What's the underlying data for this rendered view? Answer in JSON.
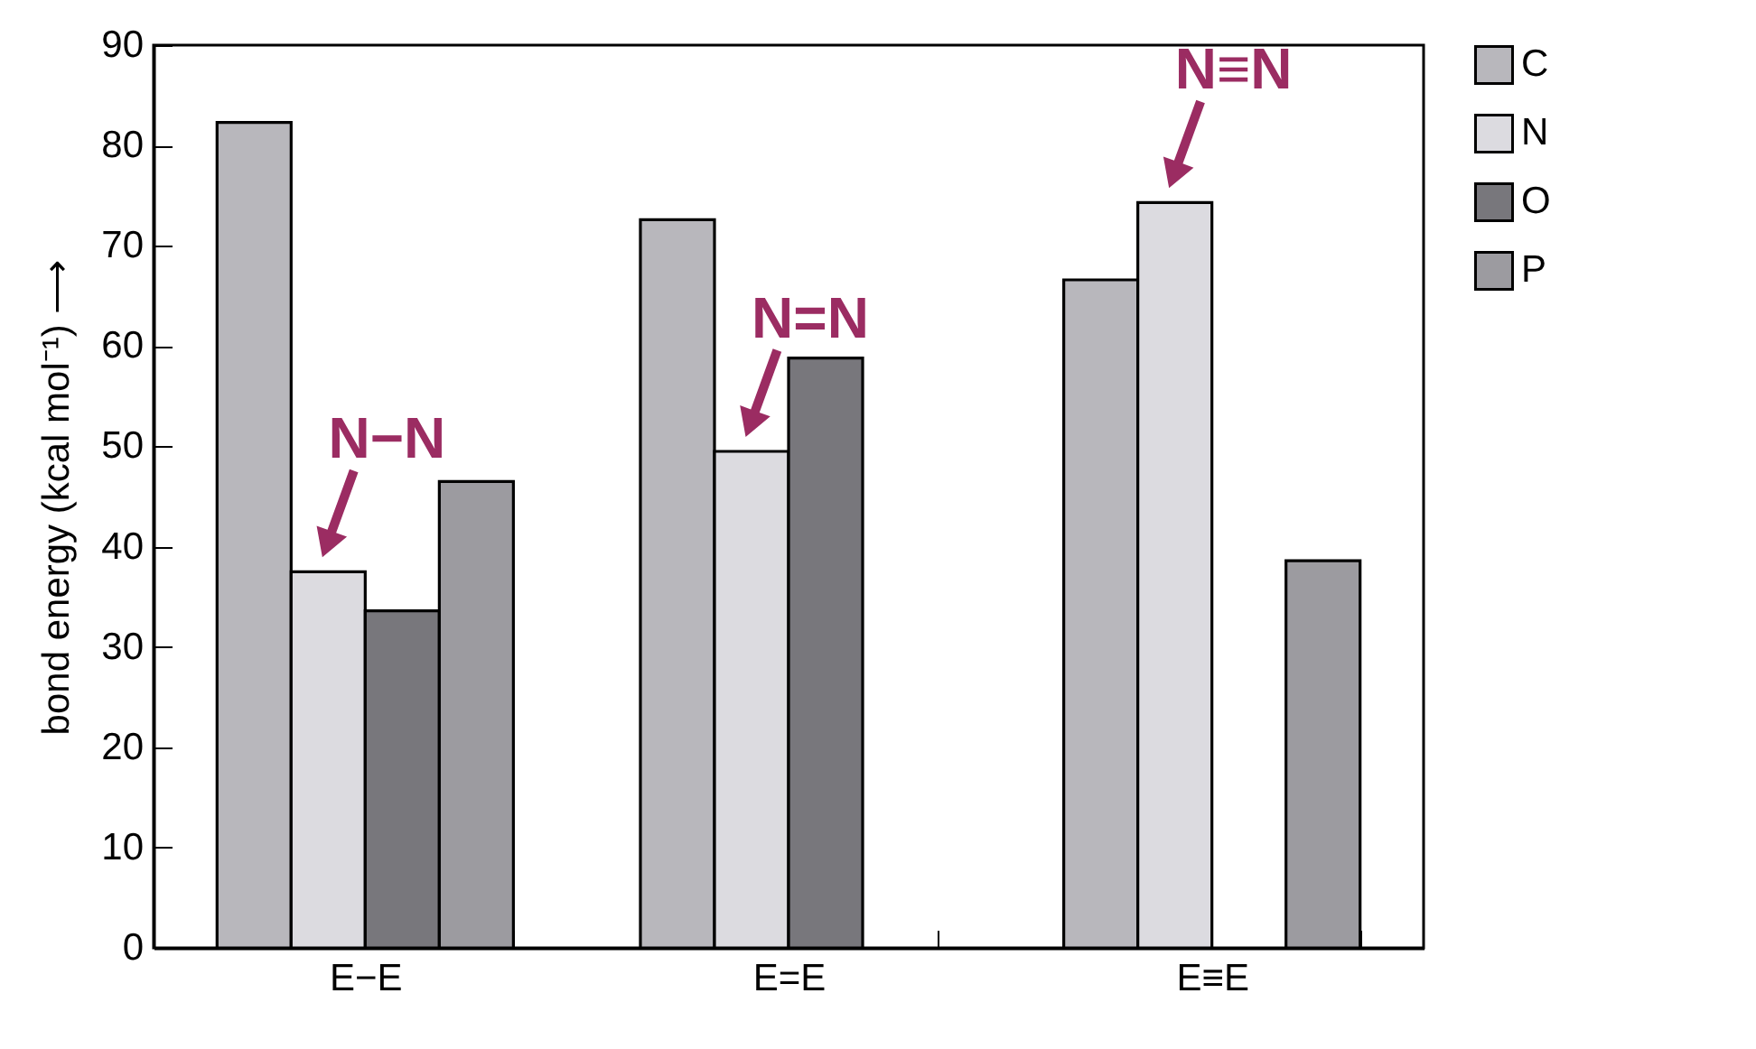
{
  "chart_data": {
    "type": "bar",
    "ylabel": "bond energy (kcal mol⁻¹) ⟶",
    "categories": [
      "E−E",
      "E=E",
      "E≡E"
    ],
    "series": [
      {
        "name": "C",
        "color": "#b8b7bc",
        "values": [
          82.3,
          72.6,
          66.6
        ]
      },
      {
        "name": "N",
        "color": "#dcdbe0",
        "values": [
          37.5,
          49.5,
          74.3
        ]
      },
      {
        "name": "O",
        "color": "#78777c",
        "values": [
          33.6,
          58.8,
          null
        ]
      },
      {
        "name": "P",
        "color": "#9c9ba0",
        "values": [
          46.5,
          null,
          38.6
        ]
      }
    ],
    "annotations": [
      {
        "text": "N−N",
        "x": "E−E",
        "y": 37.5
      },
      {
        "text": "N=N",
        "x": "E=E",
        "y": 49.5
      },
      {
        "text": "N≡N",
        "x": "E≡E",
        "y": 74.3
      }
    ],
    "ylim": [
      0,
      90
    ],
    "yticks": [
      0,
      10,
      20,
      30,
      40,
      50,
      60,
      70,
      80,
      90
    ],
    "grid": false,
    "legend": "top right"
  }
}
